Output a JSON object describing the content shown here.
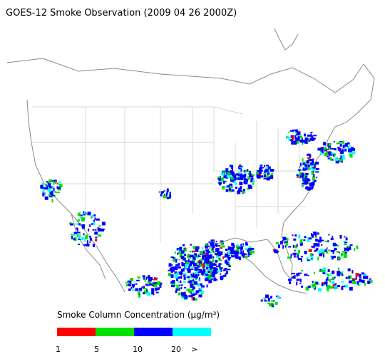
{
  "title": "GOES-12 Smoke Observation (2009 04 26  2000Z)",
  "legend": {
    "title": "Smoke Column Concentration (μg/m³)",
    "colors": [
      "#ff0000",
      "#00e000",
      "#0000ff",
      "#00ffff"
    ],
    "labels": [
      "1",
      "5",
      "10",
      "20",
      ">"
    ]
  }
}
